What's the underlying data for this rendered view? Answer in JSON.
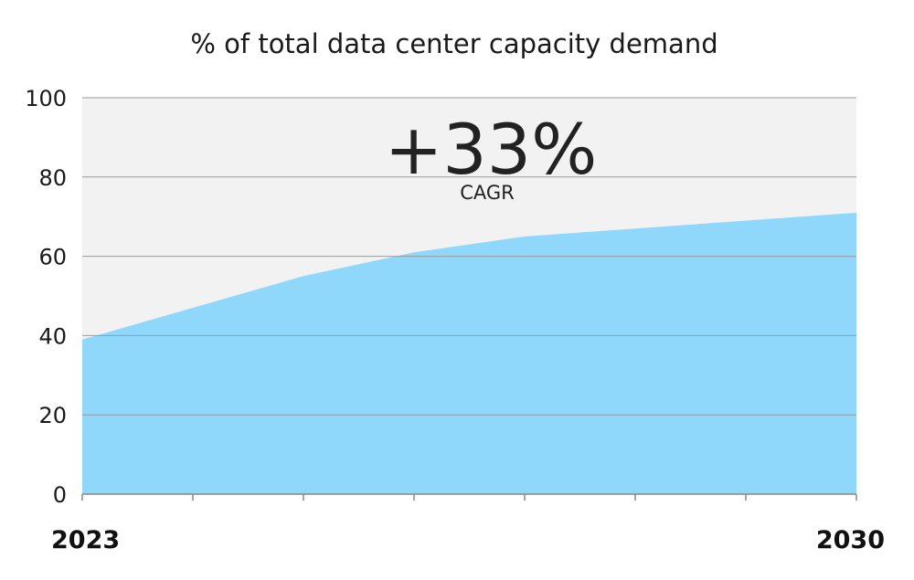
{
  "chart_data": {
    "type": "area",
    "title": "% of total data center capacity demand",
    "x": [
      2023,
      2024,
      2025,
      2026,
      2027,
      2028,
      2029,
      2030
    ],
    "series": [
      {
        "values": [
          39,
          47,
          55,
          61,
          65,
          67,
          69,
          71
        ]
      }
    ],
    "x_tick_labels": [
      "2023",
      "2030"
    ],
    "y_ticks": [
      0,
      20,
      40,
      60,
      80,
      100
    ],
    "ylim": [
      0,
      100
    ],
    "xlabel": "",
    "ylabel": "",
    "grid": true,
    "annotation": {
      "value": "+33%",
      "label": "CAGR"
    },
    "colors": {
      "area": "#8fd7fb",
      "plot_bg": "#f2f2f2",
      "grid": "#9a9a9a",
      "axis": "#888888"
    }
  }
}
